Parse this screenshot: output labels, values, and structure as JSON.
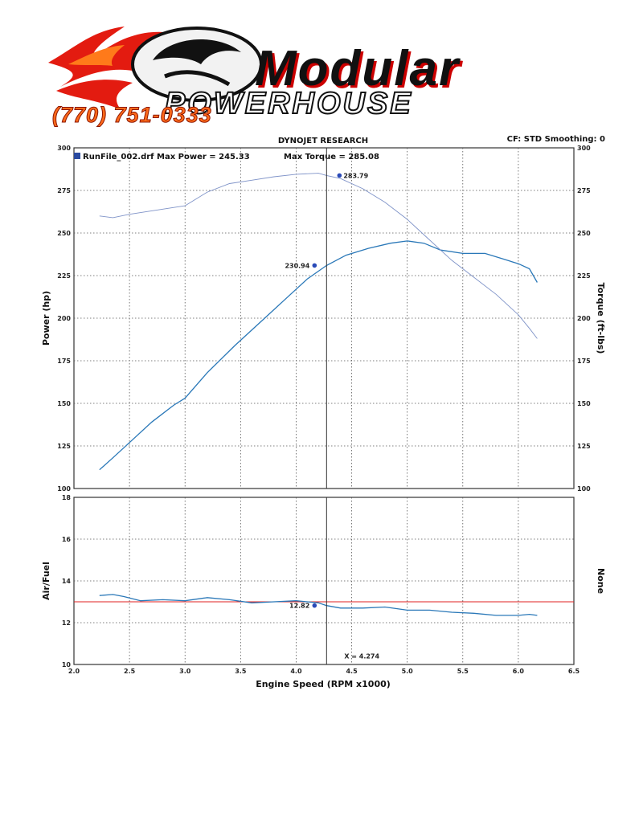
{
  "logo": {
    "brand_main": "Modular",
    "brand_sub": "POWERHOUSE",
    "phone": "(770) 751-0333"
  },
  "header": {
    "title": "DYNOJET RESEARCH",
    "cf_smoothing": "CF: STD  Smoothing: 0",
    "legend": "RunFile_002.drf Max Power = 245.33",
    "max_torque": "Max Torque = 285.08"
  },
  "chart_data": [
    {
      "type": "line",
      "panel": "power-torque",
      "ylabel": "Power (hp)",
      "y2label": "Torque (ft-lbs)",
      "xlim": [
        2.0,
        6.5
      ],
      "ylim": [
        100,
        300
      ],
      "y2lim": [
        100,
        300
      ],
      "xticks": [
        "2.0",
        "2.5",
        "3.0",
        "3.5",
        "4.0",
        "4.5",
        "5.0",
        "5.5",
        "6.0",
        "6.5"
      ],
      "yticks": [
        "100",
        "125",
        "150",
        "175",
        "200",
        "225",
        "250",
        "275",
        "300"
      ],
      "y2ticks": [
        "100",
        "125",
        "150",
        "175",
        "200",
        "225",
        "250",
        "275",
        "300"
      ],
      "grid": true,
      "series": [
        {
          "role": "power",
          "color": "#2a78b8",
          "x": [
            2.23,
            2.35,
            2.5,
            2.7,
            2.9,
            3.0,
            3.2,
            3.45,
            3.7,
            3.9,
            4.1,
            4.274,
            4.45,
            4.65,
            4.85,
            5.0,
            5.15,
            5.3,
            5.5,
            5.7,
            5.85,
            6.0,
            6.1,
            6.17
          ],
          "y": [
            111,
            118,
            127,
            139,
            149,
            153,
            168,
            184,
            199,
            211,
            223,
            230.94,
            237,
            241,
            244,
            245.33,
            244,
            240,
            238,
            238,
            235,
            232,
            229,
            221
          ]
        },
        {
          "role": "torque",
          "color": "#7f93c8",
          "x": [
            2.23,
            2.35,
            2.5,
            2.7,
            2.9,
            3.0,
            3.2,
            3.4,
            3.6,
            3.8,
            4.0,
            4.2,
            4.274,
            4.4,
            4.6,
            4.8,
            5.0,
            5.2,
            5.4,
            5.6,
            5.8,
            6.0,
            6.1,
            6.17
          ],
          "y": [
            260,
            259,
            261,
            263,
            265,
            266,
            274,
            279,
            281,
            283,
            284.5,
            285.08,
            283.79,
            282,
            276,
            268,
            258,
            246,
            234,
            224,
            214,
            202,
            194,
            188
          ]
        }
      ],
      "annotations": [
        {
          "text": "283.79",
          "x": 4.274,
          "y": 283.79
        },
        {
          "text": "230.94",
          "x": 4.274,
          "y": 230.94
        }
      ],
      "cursor_x": 4.274
    },
    {
      "type": "line",
      "panel": "air-fuel",
      "xlabel": "Engine Speed (RPM x1000)",
      "ylabel": "Air/Fuel",
      "y2label": "None",
      "xlim": [
        2.0,
        6.5
      ],
      "ylim": [
        10,
        18
      ],
      "xticks": [
        "2.0",
        "2.5",
        "3.0",
        "3.5",
        "4.0",
        "4.5",
        "5.0",
        "5.5",
        "6.0",
        "6.5"
      ],
      "yticks": [
        "10",
        "12",
        "14",
        "16",
        "18"
      ],
      "grid": true,
      "reference_line": {
        "y": 13.0,
        "color": "#e02020"
      },
      "series": [
        {
          "role": "air-fuel",
          "color": "#2a78b8",
          "x": [
            2.23,
            2.35,
            2.45,
            2.6,
            2.8,
            3.0,
            3.2,
            3.4,
            3.6,
            3.8,
            4.0,
            4.2,
            4.274,
            4.4,
            4.6,
            4.8,
            5.0,
            5.2,
            5.4,
            5.6,
            5.8,
            6.0,
            6.1,
            6.17
          ],
          "y": [
            13.3,
            13.35,
            13.25,
            13.05,
            13.1,
            13.05,
            13.2,
            13.1,
            12.95,
            13.0,
            13.05,
            12.95,
            12.82,
            12.7,
            12.7,
            12.75,
            12.6,
            12.6,
            12.5,
            12.45,
            12.35,
            12.35,
            12.4,
            12.35
          ]
        }
      ],
      "annotations": [
        {
          "text": "12.82",
          "x": 4.274,
          "y": 12.82
        },
        {
          "text": "X = 4.274",
          "x": 4.274,
          "y": 10.4
        }
      ],
      "cursor_x": 4.274
    }
  ]
}
